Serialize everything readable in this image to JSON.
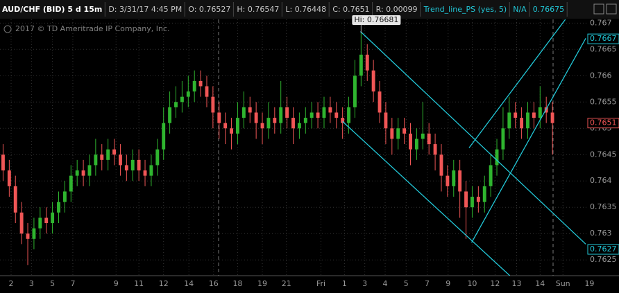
{
  "chart_data": {
    "type": "candlestick",
    "header": [
      {
        "text": "AUD/CHF (BID) 5 d 15m",
        "color": "#ffffff"
      },
      {
        "text": "D: 3/31/17 4:45 PM",
        "color": "#c8c8c8"
      },
      {
        "text": "O: 0.76527",
        "color": "#c8c8c8"
      },
      {
        "text": "H: 0.76547",
        "color": "#c8c8c8"
      },
      {
        "text": "L: 0.76448",
        "color": "#c8c8c8"
      },
      {
        "text": "C: 0.7651",
        "color": "#c8c8c8"
      },
      {
        "text": "R: 0.00099",
        "color": "#c8c8c8"
      },
      {
        "text": "Trend_line_PS (yes, 5)",
        "color": "#22c8d8"
      },
      {
        "text": "N/A",
        "color": "#22c8d8"
      },
      {
        "text": "0.76675",
        "color": "#22c8d8"
      }
    ],
    "watermark": "2017 © TD Ameritrade IP Company, Inc.",
    "series": [
      {
        "up_color": "#2fb52f",
        "down_color": "#f05656",
        "open": [
          0.7645,
          0.7642,
          0.7639,
          0.7634,
          0.763,
          0.7629,
          0.7631,
          0.7633,
          0.7632,
          0.7634,
          0.7636,
          0.7638,
          0.7641,
          0.7642,
          0.7641,
          0.7643,
          0.7645,
          0.7644,
          0.7646,
          0.7645,
          0.7643,
          0.7642,
          0.7644,
          0.7642,
          0.7641,
          0.7643,
          0.7646,
          0.7651,
          0.7654,
          0.7655,
          0.7656,
          0.7657,
          0.7659,
          0.7658,
          0.7656,
          0.7653,
          0.7651,
          0.765,
          0.7649,
          0.7652,
          0.7654,
          0.7653,
          0.7651,
          0.765,
          0.7652,
          0.7651,
          0.7654,
          0.7652,
          0.765,
          0.7651,
          0.7652,
          0.7653,
          0.7652,
          0.7654,
          0.7653,
          0.7652,
          0.7651,
          0.7654,
          0.766,
          0.7664,
          0.7661,
          0.7657,
          0.7653,
          0.765,
          0.7648,
          0.765,
          0.7649,
          0.7646,
          0.7648,
          0.7649,
          0.7647,
          0.7645,
          0.7641,
          0.7639,
          0.7642,
          0.7638,
          0.7635,
          0.7637,
          0.7636,
          0.7639,
          0.7643,
          0.7646,
          0.765,
          0.7653,
          0.7652,
          0.765,
          0.7653,
          0.7652,
          0.7654,
          0.7653
        ],
        "high": [
          0.7647,
          0.7644,
          0.7641,
          0.7636,
          0.7632,
          0.7633,
          0.7635,
          0.7635,
          0.7636,
          0.7638,
          0.764,
          0.7643,
          0.7644,
          0.7644,
          0.7645,
          0.7648,
          0.7647,
          0.7648,
          0.7648,
          0.7647,
          0.7645,
          0.7646,
          0.7646,
          0.7644,
          0.7645,
          0.7648,
          0.7654,
          0.7657,
          0.7658,
          0.7659,
          0.766,
          0.7661,
          0.7661,
          0.766,
          0.7658,
          0.7655,
          0.7653,
          0.7652,
          0.7655,
          0.7657,
          0.7656,
          0.7655,
          0.7653,
          0.7655,
          0.7654,
          0.7659,
          0.7656,
          0.7654,
          0.7653,
          0.7654,
          0.7655,
          0.7655,
          0.7656,
          0.7656,
          0.7655,
          0.7654,
          0.7656,
          0.7663,
          0.76681,
          0.7666,
          0.7663,
          0.7659,
          0.7655,
          0.7652,
          0.7652,
          0.7652,
          0.7651,
          0.765,
          0.7655,
          0.7651,
          0.7649,
          0.7647,
          0.7643,
          0.7644,
          0.7644,
          0.764,
          0.7639,
          0.7639,
          0.7641,
          0.7645,
          0.7648,
          0.7654,
          0.7656,
          0.7655,
          0.7654,
          0.7655,
          0.7655,
          0.7658,
          0.7656,
          0.7655
        ],
        "low": [
          0.764,
          0.7637,
          0.7632,
          0.7628,
          0.7624,
          0.7627,
          0.7629,
          0.763,
          0.763,
          0.7632,
          0.7634,
          0.7636,
          0.7639,
          0.7639,
          0.7639,
          0.7641,
          0.7642,
          0.7642,
          0.7643,
          0.7641,
          0.764,
          0.764,
          0.764,
          0.7639,
          0.7639,
          0.7641,
          0.7644,
          0.7649,
          0.7652,
          0.7653,
          0.7654,
          0.7655,
          0.7656,
          0.7654,
          0.765,
          0.7648,
          0.7647,
          0.7646,
          0.7647,
          0.765,
          0.7651,
          0.7648,
          0.7647,
          0.7648,
          0.7649,
          0.7649,
          0.765,
          0.7647,
          0.7648,
          0.7649,
          0.765,
          0.765,
          0.765,
          0.7651,
          0.765,
          0.7648,
          0.7649,
          0.7652,
          0.7658,
          0.7659,
          0.7655,
          0.7651,
          0.7647,
          0.7645,
          0.7646,
          0.7647,
          0.7643,
          0.7644,
          0.7646,
          0.7645,
          0.7642,
          0.7638,
          0.7637,
          0.7637,
          0.7633,
          0.7629,
          0.7633,
          0.7634,
          0.7634,
          0.7637,
          0.7641,
          0.7644,
          0.7648,
          0.765,
          0.7648,
          0.7648,
          0.765,
          0.765,
          0.7651,
          0.7645
        ],
        "close": [
          0.7642,
          0.7639,
          0.7634,
          0.763,
          0.7629,
          0.7631,
          0.7633,
          0.7632,
          0.7634,
          0.7636,
          0.7638,
          0.7641,
          0.7642,
          0.7641,
          0.7643,
          0.7645,
          0.7644,
          0.7646,
          0.7645,
          0.7643,
          0.7642,
          0.7644,
          0.7642,
          0.7641,
          0.7643,
          0.7646,
          0.7651,
          0.7654,
          0.7655,
          0.7656,
          0.7657,
          0.7659,
          0.7658,
          0.7656,
          0.7653,
          0.7651,
          0.765,
          0.7649,
          0.7652,
          0.7654,
          0.7653,
          0.7651,
          0.765,
          0.7652,
          0.7651,
          0.7654,
          0.7652,
          0.765,
          0.7651,
          0.7652,
          0.7653,
          0.7652,
          0.7654,
          0.7653,
          0.7652,
          0.7651,
          0.7654,
          0.766,
          0.7664,
          0.7661,
          0.7657,
          0.7653,
          0.765,
          0.7648,
          0.765,
          0.7649,
          0.7646,
          0.7648,
          0.7649,
          0.7647,
          0.7645,
          0.7641,
          0.7639,
          0.7642,
          0.7638,
          0.7635,
          0.7637,
          0.7636,
          0.7639,
          0.7643,
          0.7646,
          0.765,
          0.7653,
          0.7652,
          0.765,
          0.7653,
          0.7652,
          0.7654,
          0.7653,
          0.7651
        ]
      }
    ],
    "xlim": [
      -0.5,
      94.5
    ],
    "xticks": [
      {
        "value": 1.3,
        "label": "2"
      },
      {
        "value": 4.6,
        "label": "3"
      },
      {
        "value": 8,
        "label": "5"
      },
      {
        "value": 11.3,
        "label": "7"
      },
      {
        "value": 18.3,
        "label": "9"
      },
      {
        "value": 22,
        "label": "11"
      },
      {
        "value": 26,
        "label": "12"
      },
      {
        "value": 30.1,
        "label": "14"
      },
      {
        "value": 34.1,
        "label": "16"
      },
      {
        "value": 38,
        "label": "18"
      },
      {
        "value": 42,
        "label": "19"
      },
      {
        "value": 45.9,
        "label": "21"
      },
      {
        "value": 51.5,
        "label": "Fri"
      },
      {
        "value": 55.3,
        "label": "1"
      },
      {
        "value": 58.6,
        "label": "3"
      },
      {
        "value": 61.9,
        "label": "4"
      },
      {
        "value": 65.3,
        "label": "5"
      },
      {
        "value": 68.7,
        "label": "7"
      },
      {
        "value": 72.1,
        "label": "9"
      },
      {
        "value": 76,
        "label": "10"
      },
      {
        "value": 79.7,
        "label": "12"
      },
      {
        "value": 83.2,
        "label": "13"
      },
      {
        "value": 87,
        "label": "14"
      },
      {
        "value": 90.7,
        "label": "Sun"
      },
      {
        "value": 95,
        "label": "19"
      }
    ],
    "ylim": [
      0.7622,
      0.76707
    ],
    "yticks": [
      0.767,
      0.7665,
      0.766,
      0.7655,
      0.765,
      0.7645,
      0.764,
      0.7635,
      0.763,
      0.7625
    ],
    "grid": true,
    "trend_line_color": "#22c8d8",
    "trend_lines": [
      {
        "x": [
          57.9,
          94.4
        ],
        "y": [
          0.76684,
          0.7628
        ]
      },
      {
        "x": [
          55,
          82.1
        ],
        "y": [
          0.76513,
          0.7622
        ]
      },
      {
        "x": [
          75.9,
          94.4
        ],
        "y": [
          0.76283,
          0.76671
        ]
      },
      {
        "x": [
          75.5,
          91.1
        ],
        "y": [
          0.76463,
          0.76707
        ]
      }
    ],
    "high_label": "Hi: 0.76681",
    "price_labels": [
      {
        "value": 0.7667,
        "color": "#22c8d8"
      },
      {
        "value": 0.7651,
        "color": "#f05656"
      },
      {
        "value": 0.7627,
        "color": "#22c8d8"
      }
    ]
  }
}
